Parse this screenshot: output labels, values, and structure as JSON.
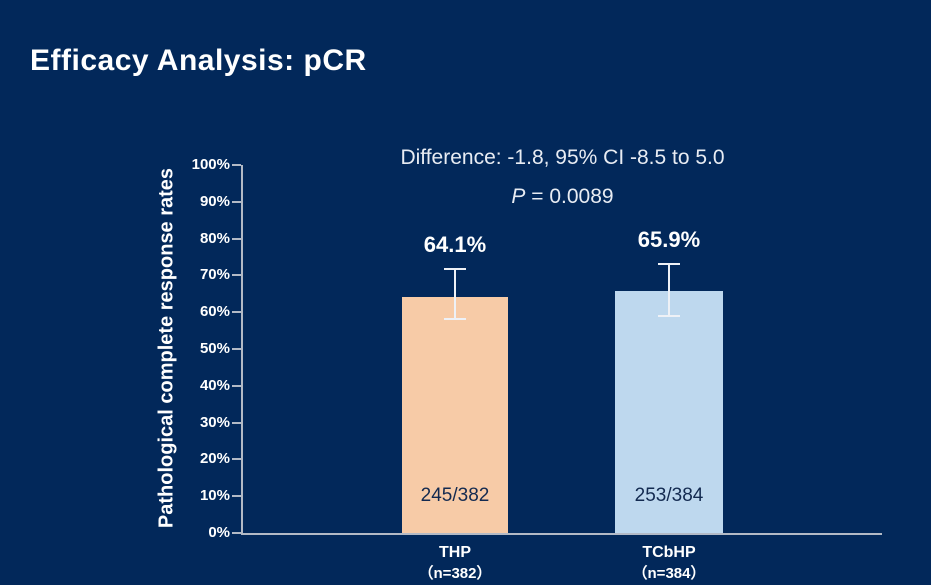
{
  "slide": {
    "title": "Efficacy Analysis: pCR"
  },
  "stats": {
    "difference": "Difference: -1.8, 95% CI -8.5 to 5.0",
    "p_italic": "P",
    "p_rest": " = 0.0089"
  },
  "colors": {
    "background": "#02285a",
    "bar_thp": "#f7cba7",
    "bar_tcbhp": "#bed8ee",
    "axis_line": "#b3bac6",
    "error_bar": "#eef1f6",
    "title_text": "#ffffff",
    "annotation_text": "#e8ecf3",
    "count_text": "#132a50"
  },
  "chart_data": {
    "type": "bar",
    "title": "",
    "ylabel": "Pathological complete response rates",
    "xlabel": "",
    "ylim": [
      0,
      100
    ],
    "ytick_step": 10,
    "yticks": [
      "0%",
      "10%",
      "20%",
      "30%",
      "40%",
      "50%",
      "60%",
      "70%",
      "80%",
      "90%",
      "100%"
    ],
    "grid": false,
    "legend": false,
    "categories": [
      "THP",
      "TCbHP"
    ],
    "category_sublabels": [
      "（n=382）",
      "（n=384）"
    ],
    "series": [
      {
        "name": "Pathological complete response rate",
        "values": [
          64.1,
          65.9
        ]
      }
    ],
    "value_labels": [
      "64.1%",
      "65.9%"
    ],
    "count_labels": [
      "245/382",
      "253/384"
    ],
    "error_bars_pct": [
      {
        "low": 58.0,
        "high": 72.0
      },
      {
        "low": 58.7,
        "high": 73.4
      }
    ],
    "bar_colors": [
      "#f7cba7",
      "#bed8ee"
    ],
    "annotations": [
      "Difference: -1.8, 95% CI -8.5 to 5.0",
      "P = 0.0089"
    ]
  }
}
